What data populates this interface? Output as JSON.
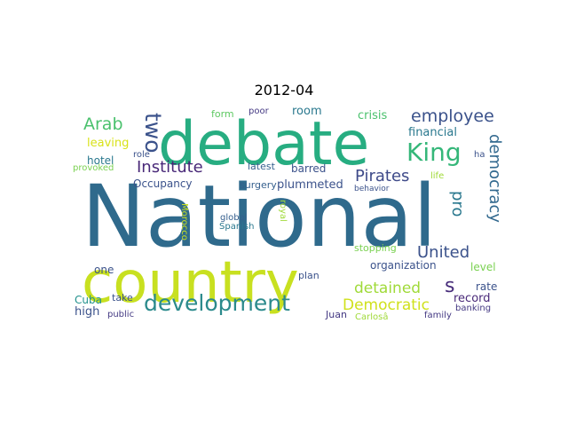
{
  "title": "2012-04",
  "words": [
    {
      "id": "national",
      "text": "National",
      "color": "#2f6a8c"
    },
    {
      "id": "debate",
      "text": "debate",
      "color": "#27ad81"
    },
    {
      "id": "country",
      "text": "country",
      "color": "#c8e020"
    },
    {
      "id": "development",
      "text": "development",
      "color": "#2b8a8c"
    },
    {
      "id": "king",
      "text": "King",
      "color": "#35b779"
    },
    {
      "id": "two",
      "text": "two",
      "color": "#3b528b"
    },
    {
      "id": "arab",
      "text": "Arab",
      "color": "#4ac16d"
    },
    {
      "id": "employee",
      "text": "employee",
      "color": "#3b528b"
    },
    {
      "id": "institute",
      "text": "Institute",
      "color": "#482878"
    },
    {
      "id": "pirates",
      "text": "Pirates",
      "color": "#3e4a89"
    },
    {
      "id": "democracy",
      "text": "democracy",
      "color": "#31688e"
    },
    {
      "id": "pro",
      "text": "pro",
      "color": "#2a788e"
    },
    {
      "id": "united",
      "text": "United",
      "color": "#3b528b"
    },
    {
      "id": "s",
      "text": "s",
      "color": "#472c7a"
    },
    {
      "id": "detained",
      "text": "detained",
      "color": "#a0da39"
    },
    {
      "id": "democratic",
      "text": "Democratic",
      "color": "#d0e11c"
    },
    {
      "id": "crisis",
      "text": "crisis",
      "color": "#4ac16d"
    },
    {
      "id": "financial",
      "text": "financial",
      "color": "#2a788e"
    },
    {
      "id": "room",
      "text": "room",
      "color": "#2a788e"
    },
    {
      "id": "leaving",
      "text": "leaving",
      "color": "#d8e219"
    },
    {
      "id": "hotel",
      "text": "hotel",
      "color": "#2a788e"
    },
    {
      "id": "provoked",
      "text": "provoked",
      "color": "#7ad151"
    },
    {
      "id": "role",
      "text": "role",
      "color": "#3b528b"
    },
    {
      "id": "occupancy",
      "text": "Occupancy",
      "color": "#3b528b"
    },
    {
      "id": "latest",
      "text": "latest",
      "color": "#355f8d"
    },
    {
      "id": "barred",
      "text": "barred",
      "color": "#3b528b"
    },
    {
      "id": "surgery",
      "text": "surgery",
      "color": "#355f8d"
    },
    {
      "id": "plummeted",
      "text": "plummeted",
      "color": "#3b528b"
    },
    {
      "id": "form",
      "text": "form",
      "color": "#5ec962"
    },
    {
      "id": "poor",
      "text": "poor",
      "color": "#443983"
    },
    {
      "id": "ha",
      "text": "ha",
      "color": "#3b528b"
    },
    {
      "id": "life",
      "text": "life",
      "color": "#a0da39"
    },
    {
      "id": "behavior",
      "text": "behavior",
      "color": "#3b528b"
    },
    {
      "id": "record",
      "text": "record",
      "color": "#482878"
    },
    {
      "id": "rate",
      "text": "rate",
      "color": "#3b528b"
    },
    {
      "id": "level",
      "text": "level",
      "color": "#7ad151"
    },
    {
      "id": "organization",
      "text": "organization",
      "color": "#3b528b"
    },
    {
      "id": "stopping",
      "text": "stopping",
      "color": "#7ad151"
    },
    {
      "id": "global",
      "text": "global",
      "color": "#355f8d"
    },
    {
      "id": "spanish",
      "text": "Spanish",
      "color": "#2a788e"
    },
    {
      "id": "royal",
      "text": "royal",
      "color": "#a0da39"
    },
    {
      "id": "morocco",
      "text": "Morocco",
      "color": "#c8e020"
    },
    {
      "id": "one",
      "text": "one",
      "color": "#3b528b"
    },
    {
      "id": "plan",
      "text": "plan",
      "color": "#3b528b"
    },
    {
      "id": "take",
      "text": "take",
      "color": "#3b528b"
    },
    {
      "id": "cuba",
      "text": "Cuba",
      "color": "#21918c"
    },
    {
      "id": "high",
      "text": "high",
      "color": "#3b528b"
    },
    {
      "id": "public",
      "text": "public",
      "color": "#443983"
    },
    {
      "id": "juan",
      "text": "Juan",
      "color": "#443983"
    },
    {
      "id": "carlosa",
      "text": "Carlosâ",
      "color": "#a0da39"
    },
    {
      "id": "family",
      "text": "family",
      "color": "#443983"
    },
    {
      "id": "banking",
      "text": "banking",
      "color": "#443983"
    }
  ]
}
